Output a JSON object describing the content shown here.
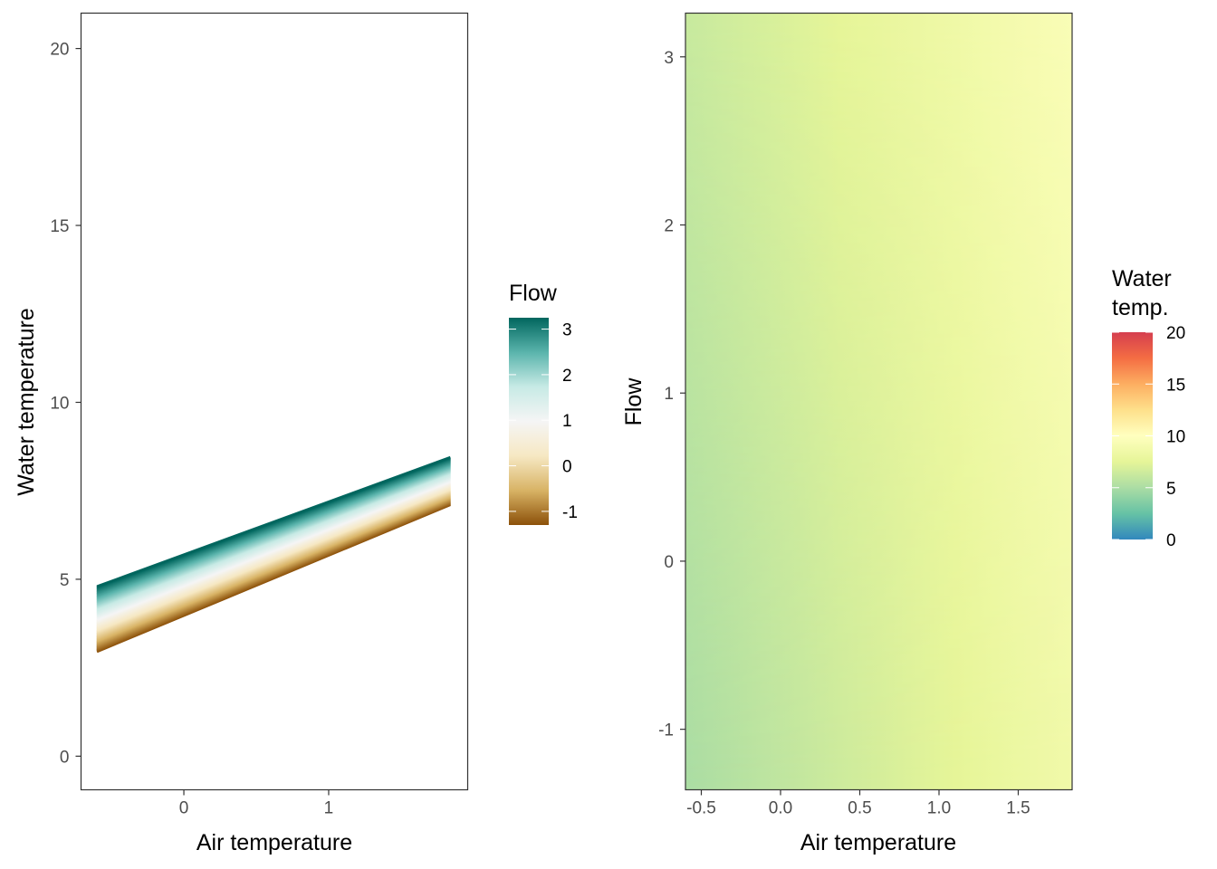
{
  "chart_data": [
    {
      "type": "line",
      "xlabel": "Air temperature",
      "ylabel": "Water temperature",
      "xlim": [
        -0.71,
        1.96
      ],
      "ylim": [
        -0.95,
        21.0
      ],
      "x_ticks": [
        0,
        1
      ],
      "x_tick_labels": [
        "0",
        "1"
      ],
      "y_ticks": [
        0,
        5,
        10,
        15,
        20
      ],
      "y_tick_labels": [
        "0",
        "5",
        "10",
        "15",
        "20"
      ],
      "grid": false,
      "x_range": [
        -0.6,
        1.84
      ],
      "flow_values": [
        -1.3,
        3.25
      ],
      "line_model": {
        "description": "Water temperature as a function of air temperature, colored by flow",
        "at_x_min_flow_min": 2.95,
        "at_x_min_flow_max": 4.8,
        "at_x_max_flow_min": 7.1,
        "at_x_max_flow_max": 8.45
      },
      "legend": {
        "title": "Flow",
        "position": "right",
        "range": [
          -1.3,
          3.25
        ],
        "ticks": [
          -1,
          0,
          1,
          2,
          3
        ],
        "tick_labels": [
          "-1",
          "0",
          "1",
          "2",
          "3"
        ],
        "colors": [
          "#8c510a",
          "#d8b365",
          "#f6e8c3",
          "#f5f5f5",
          "#c7eae5",
          "#5ab4ac",
          "#01665e"
        ]
      }
    },
    {
      "type": "heatmap",
      "xlabel": "Air temperature",
      "ylabel": "Flow",
      "xlim": [
        -0.6,
        1.84
      ],
      "ylim": [
        -1.36,
        3.26
      ],
      "x_ticks": [
        -0.5,
        0.0,
        0.5,
        1.0,
        1.5
      ],
      "x_tick_labels": [
        "-0.5",
        "0.0",
        "0.5",
        "1.0",
        "1.5"
      ],
      "y_ticks": [
        -1,
        0,
        1,
        2,
        3
      ],
      "y_tick_labels": [
        "-1",
        "0",
        "1",
        "2",
        "3"
      ],
      "grid": false,
      "surface": {
        "water_temp_left_bottom": 5.0,
        "water_temp_right_bottom": 8.6,
        "water_temp_left_top": 6.2,
        "water_temp_right_top": 9.4
      },
      "legend": {
        "title": "Water\ntemp.",
        "title_lines": [
          "Water",
          "temp."
        ],
        "position": "right",
        "range": [
          0,
          20
        ],
        "ticks": [
          0,
          5,
          10,
          15,
          20
        ],
        "tick_labels": [
          "0",
          "5",
          "10",
          "15",
          "20"
        ],
        "colors": [
          "#3288bd",
          "#66c2a5",
          "#abdda4",
          "#e6f598",
          "#ffffbf",
          "#fee08b",
          "#fdae61",
          "#f46d43",
          "#d53e4f"
        ]
      }
    }
  ]
}
